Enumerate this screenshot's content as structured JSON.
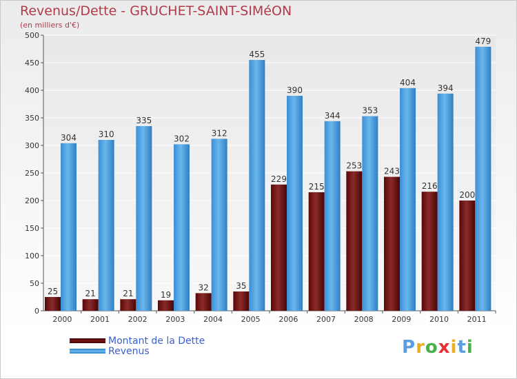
{
  "header": {
    "title": "Revenus/Dette - GRUCHET-SAINT-SIMéON",
    "subtitle": "(en milliers d'€)"
  },
  "legend": {
    "items": [
      {
        "label": "Montant de la Dette",
        "color": "#6b0f0f"
      },
      {
        "label": "Revenus",
        "color": "#4a9fe0"
      }
    ]
  },
  "logo": {
    "text": "Proxiti",
    "colors": [
      "#5a9de0",
      "#e8b020",
      "#4ab04a",
      "#e83030",
      "#e8b020",
      "#5a9de0",
      "#4ab04a"
    ]
  },
  "chart_data": {
    "type": "bar",
    "title": "Revenus/Dette - GRUCHET-SAINT-SIMéON",
    "subtitle": "(en milliers d'€)",
    "categories": [
      "2000",
      "2001",
      "2002",
      "2003",
      "2004",
      "2005",
      "2006",
      "2007",
      "2008",
      "2009",
      "2010",
      "2011"
    ],
    "series": [
      {
        "name": "Montant de la Dette",
        "color": "#6b0f0f",
        "values": [
          25,
          21,
          21,
          19,
          32,
          35,
          229,
          215,
          253,
          243,
          216,
          200
        ]
      },
      {
        "name": "Revenus",
        "color": "#4a9fe0",
        "values": [
          304,
          310,
          335,
          302,
          312,
          455,
          390,
          344,
          353,
          404,
          394,
          479
        ]
      }
    ],
    "ylim": [
      0,
      500
    ],
    "yticks": [
      0,
      50,
      100,
      150,
      200,
      250,
      300,
      350,
      400,
      450,
      500
    ],
    "grid": true,
    "legend": "bottom-left"
  }
}
